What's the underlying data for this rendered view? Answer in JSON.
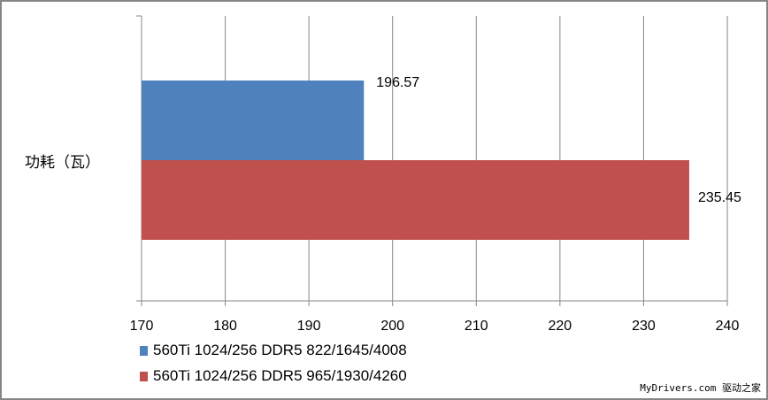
{
  "chart_data": {
    "type": "bar",
    "orientation": "horizontal",
    "categories": [
      "功耗（瓦）"
    ],
    "series": [
      {
        "name": "560Ti 1024/256 DDR5 822/1645/4008",
        "values": [
          196.57
        ],
        "color": "#4F81BD"
      },
      {
        "name": "560Ti 1024/256 DDR5 965/1930/4260",
        "values": [
          235.45
        ],
        "color": "#C0504D"
      }
    ],
    "xlim": [
      170,
      240
    ],
    "xticks": [
      170,
      180,
      190,
      200,
      210,
      220,
      230,
      240
    ],
    "grid": true,
    "legend_position": "bottom-left",
    "data_labels": [
      "196.57",
      "235.45"
    ]
  },
  "watermark": "MyDrivers.com 驱动之家"
}
